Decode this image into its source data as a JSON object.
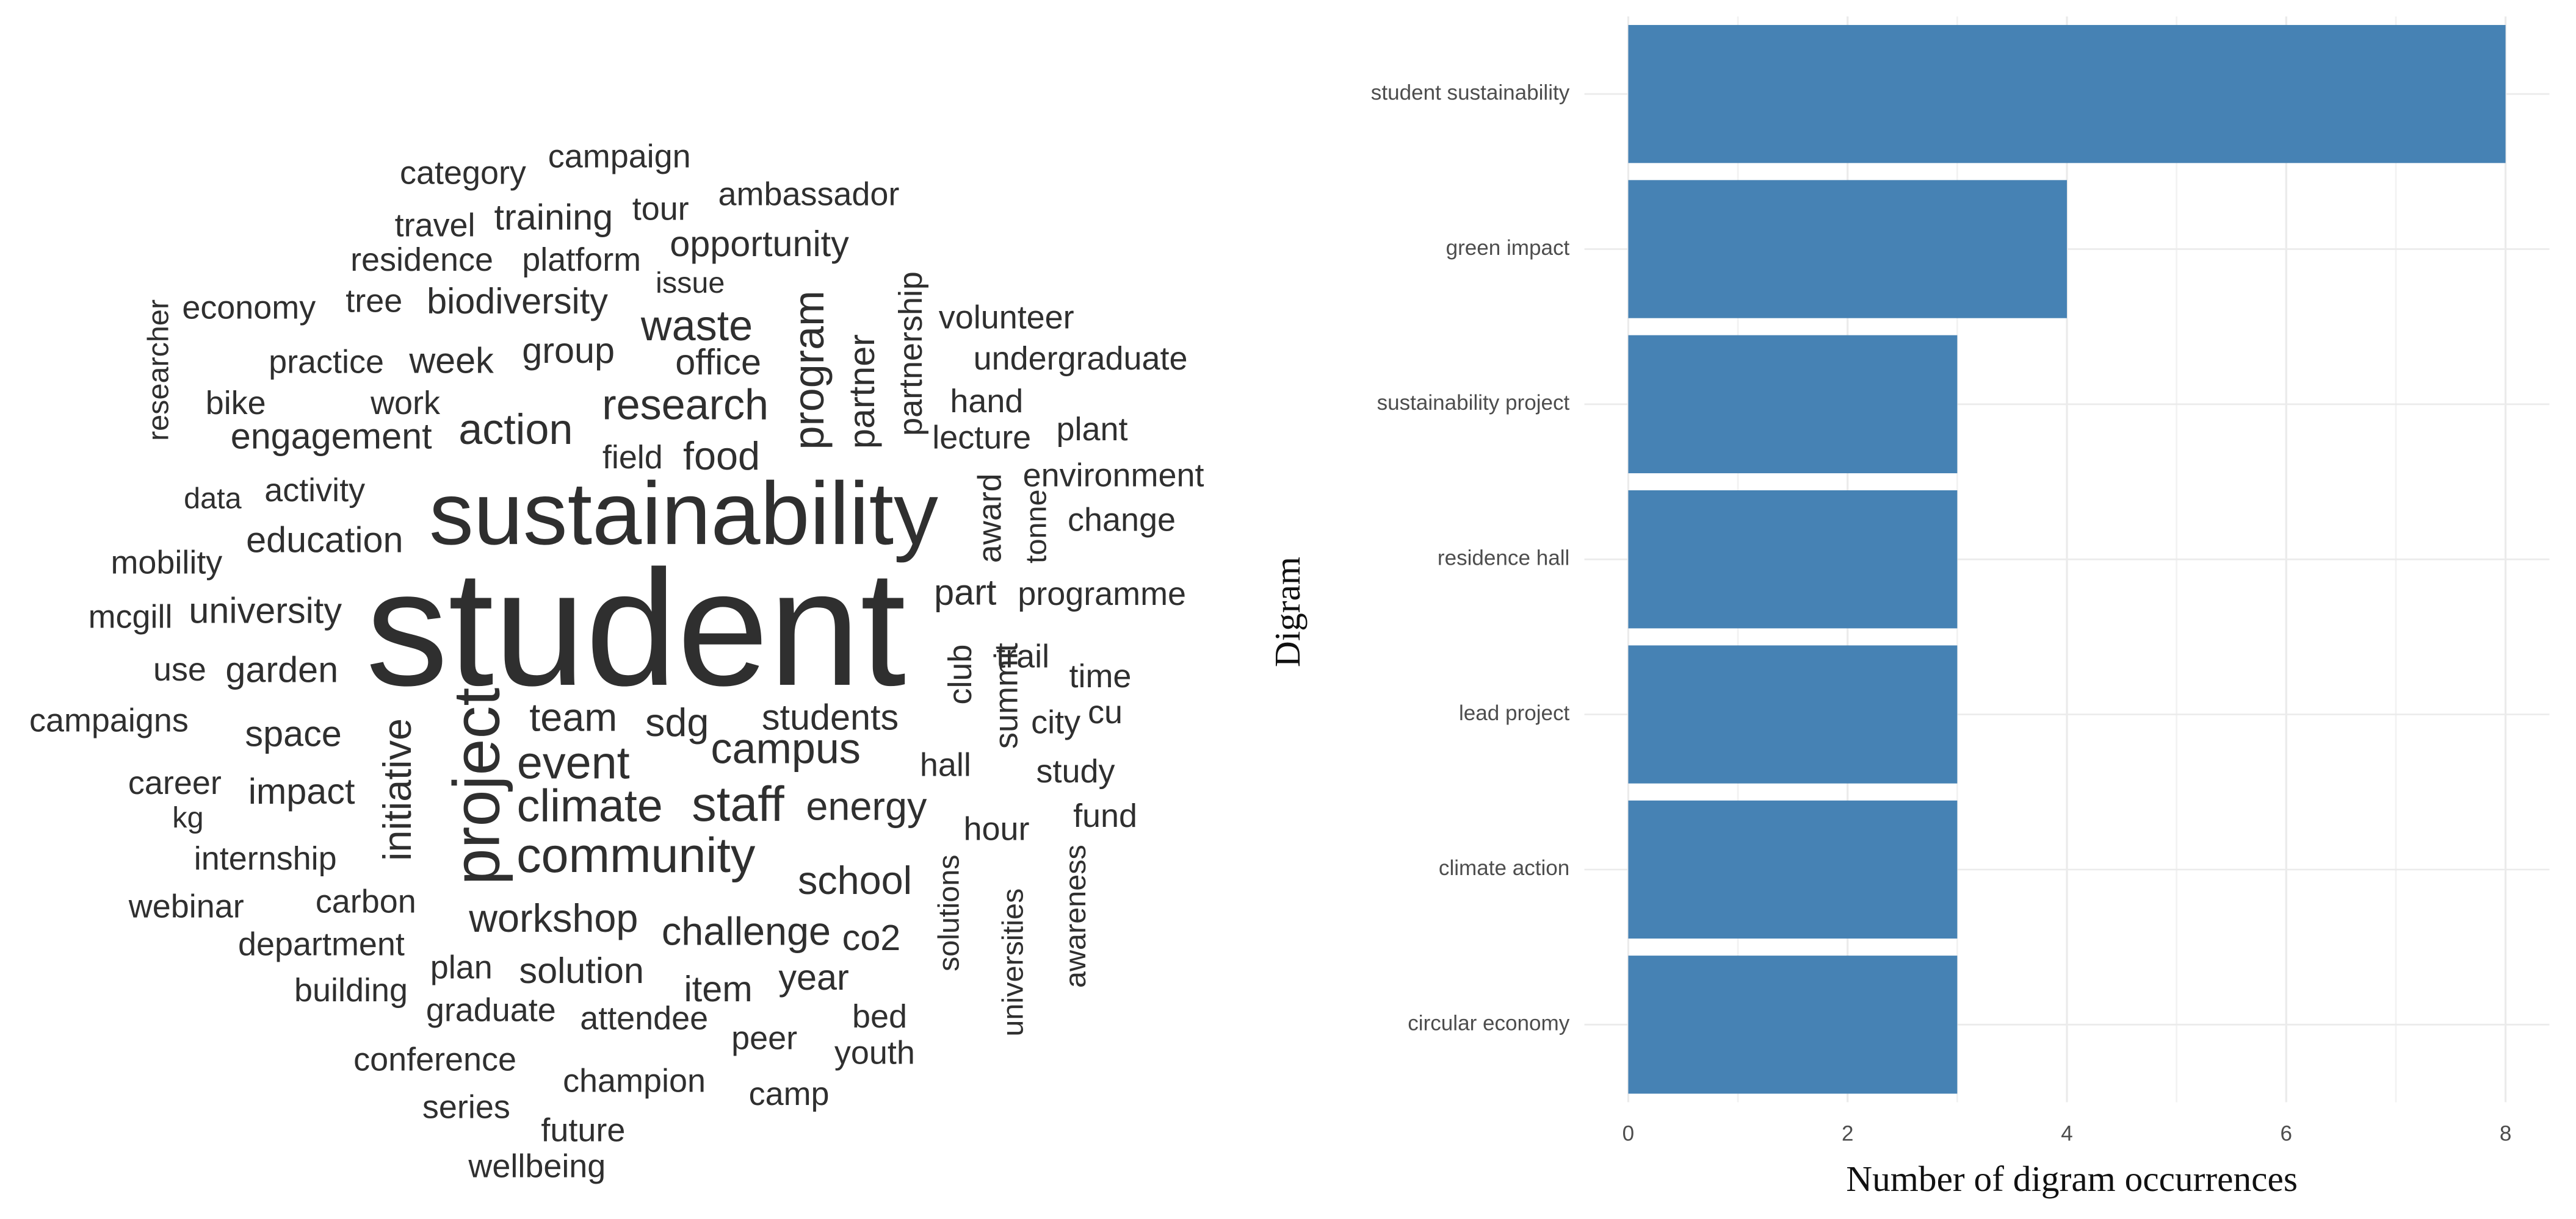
{
  "chart_data": [
    {
      "type": "wordcloud",
      "words": [
        "category",
        "campaign",
        "travel",
        "training",
        "tour",
        "ambassador",
        "residence",
        "platform",
        "opportunity",
        "issue",
        "partnership",
        "economy",
        "tree",
        "biodiversity",
        "researcher",
        "waste",
        "program",
        "partner",
        "volunteer",
        "practice",
        "week",
        "group",
        "office",
        "undergraduate",
        "bike",
        "work",
        "research",
        "hand",
        "plant",
        "engagement",
        "action",
        "lecture",
        "field",
        "food",
        "award",
        "tonne",
        "environment",
        "data",
        "activity",
        "sustainability",
        "change",
        "education",
        "mobility",
        "student",
        "part",
        "programme",
        "mcgill",
        "university",
        "use",
        "garden",
        "trail",
        "time",
        "club",
        "summit",
        "campaigns",
        "space",
        "project",
        "initiative",
        "team",
        "sdg",
        "students",
        "city",
        "cu",
        "campus",
        "event",
        "hall",
        "career",
        "impact",
        "study",
        "climate",
        "staff",
        "energy",
        "fund",
        "kg",
        "hour",
        "awareness",
        "solutions",
        "universities",
        "internship",
        "community",
        "school",
        "webinar",
        "carbon",
        "workshop",
        "challenge",
        "co2",
        "department",
        "plan",
        "solution",
        "year",
        "item",
        "building",
        "graduate",
        "attendee",
        "bed",
        "peer",
        "conference",
        "youth",
        "champion",
        "series",
        "camp",
        "future",
        "wellbeing"
      ]
    },
    {
      "type": "bar",
      "orientation": "horizontal",
      "categories": [
        "student sustainability",
        "green impact",
        "sustainability project",
        "residence hall",
        "lead project",
        "climate action",
        "circular economy"
      ],
      "values": [
        8,
        4,
        3,
        3,
        3,
        3,
        3
      ],
      "color": "#4682b4",
      "xlim": [
        -0.4,
        8.4
      ],
      "xticks": [
        0,
        2,
        4,
        6,
        8
      ],
      "xlabel": "Number of digram occurrences",
      "ylabel": "Digram",
      "grid": true
    }
  ]
}
